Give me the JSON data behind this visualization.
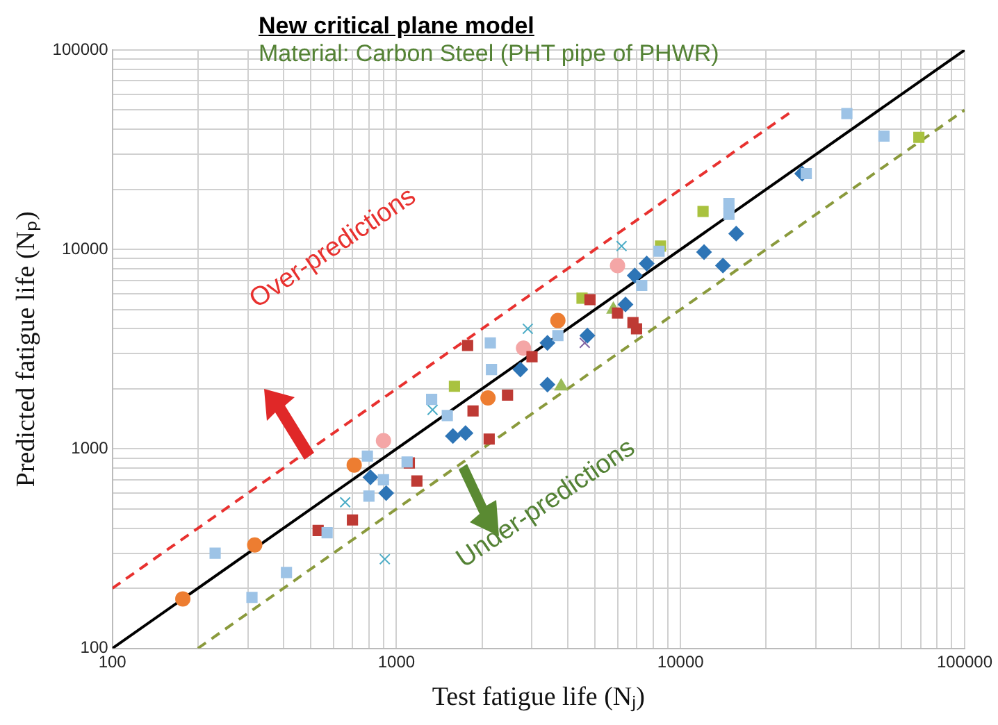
{
  "chart_data": {
    "type": "scatter",
    "title": "New critical plane model",
    "subtitle": "Material: Carbon Steel (PHT pipe of PHWR)",
    "xlabel": "Test fatigue life (Nⱼ)",
    "ylabel": "Predicted fatigue life (Nₚ)",
    "log": "xy",
    "grid": true,
    "legend": false,
    "xlim": [
      100,
      100000
    ],
    "ylim": [
      100,
      100000
    ],
    "xticks": [
      100,
      {
        "value": 200,
        "label": null
      },
      {
        "value": 300,
        "label": null
      },
      {
        "value": 400,
        "label": null
      },
      {
        "value": 500,
        "label": null
      },
      {
        "value": 600,
        "label": null
      },
      {
        "value": 700,
        "label": null
      },
      {
        "value": 800,
        "label": null
      },
      {
        "value": 900,
        "label": null
      },
      1000,
      {
        "value": 2000,
        "label": null
      },
      {
        "value": 3000,
        "label": null
      },
      {
        "value": 4000,
        "label": null
      },
      {
        "value": 5000,
        "label": null
      },
      {
        "value": 6000,
        "label": null
      },
      {
        "value": 7000,
        "label": null
      },
      {
        "value": 8000,
        "label": null
      },
      {
        "value": 9000,
        "label": null
      },
      10000,
      {
        "value": 20000,
        "label": null
      },
      {
        "value": 30000,
        "label": null
      },
      {
        "value": 40000,
        "label": null
      },
      {
        "value": 50000,
        "label": null
      },
      {
        "value": 60000,
        "label": null
      },
      {
        "value": 70000,
        "label": null
      },
      {
        "value": 80000,
        "label": null
      },
      {
        "value": 90000,
        "label": null
      },
      100000
    ],
    "yticks": [
      100,
      {
        "value": 200,
        "label": null
      },
      {
        "value": 300,
        "label": null
      },
      {
        "value": 400,
        "label": null
      },
      {
        "value": 500,
        "label": null
      },
      {
        "value": 600,
        "label": null
      },
      {
        "value": 700,
        "label": null
      },
      {
        "value": 800,
        "label": null
      },
      {
        "value": 900,
        "label": null
      },
      1000,
      {
        "value": 2000,
        "label": null
      },
      {
        "value": 3000,
        "label": null
      },
      {
        "value": 4000,
        "label": null
      },
      {
        "value": 5000,
        "label": null
      },
      {
        "value": 6000,
        "label": null
      },
      {
        "value": 7000,
        "label": null
      },
      {
        "value": 8000,
        "label": null
      },
      {
        "value": 9000,
        "label": null
      },
      10000,
      {
        "value": 20000,
        "label": null
      },
      {
        "value": 30000,
        "label": null
      },
      {
        "value": 40000,
        "label": null
      },
      {
        "value": 50000,
        "label": null
      },
      {
        "value": 60000,
        "label": null
      },
      {
        "value": 70000,
        "label": null
      },
      {
        "value": 80000,
        "label": null
      },
      {
        "value": 90000,
        "label": null
      },
      100000
    ],
    "annotations": [
      "Over-predictions",
      "Under-predictions"
    ],
    "series": [
      {
        "type": "line",
        "color": "#000000",
        "line_style": "solid",
        "marker": "none",
        "x": [
          100,
          100000
        ],
        "values": [
          100,
          100000
        ]
      },
      {
        "type": "line",
        "color": "#e8312f",
        "line_style": "dashed",
        "marker": "none",
        "x": [
          100,
          25000
        ],
        "values": [
          200,
          50000
        ]
      },
      {
        "type": "line",
        "color": "#8a9a3c",
        "line_style": "dashed",
        "marker": "none",
        "x": [
          200,
          100000
        ],
        "values": [
          100,
          50000
        ]
      },
      {
        "color": "#9dc3e6",
        "marker": "square",
        "x": [
          230,
          310,
          410,
          570,
          790,
          800,
          900,
          1090,
          1330,
          1510,
          2140,
          2160,
          3700,
          7300,
          8400,
          14800,
          14800,
          27700,
          38500,
          52000
        ],
        "values": [
          300,
          180,
          240,
          380,
          920,
          580,
          700,
          860,
          1770,
          1470,
          3400,
          2500,
          3700,
          6600,
          9800,
          17000,
          15000,
          24000,
          48000,
          37000
        ]
      },
      {
        "color": "#2e75b6",
        "marker": "diamond",
        "x": [
          810,
          920,
          1580,
          1750,
          2730,
          3400,
          3400,
          4700,
          6400,
          6900,
          7600,
          12100,
          14100,
          15700,
          26800
        ],
        "values": [
          720,
          600,
          1160,
          1200,
          2500,
          3400,
          2100,
          3700,
          5300,
          7400,
          8500,
          9700,
          8300,
          12000,
          24000
        ]
      },
      {
        "color": "#be3a34",
        "marker": "square",
        "x": [
          530,
          700,
          1110,
          1180,
          1780,
          1860,
          2120,
          2460,
          3000,
          4800,
          6000,
          6800,
          7000
        ],
        "values": [
          390,
          440,
          850,
          690,
          3300,
          1550,
          1120,
          1860,
          2900,
          5600,
          4800,
          4300,
          4000
        ]
      },
      {
        "color": "#ed7d31",
        "marker": "circle",
        "x": [
          177,
          317,
          710,
          2100,
          3700
        ],
        "values": [
          177,
          330,
          830,
          1800,
          4400
        ]
      },
      {
        "color": "#f4a6a6",
        "marker": "circle",
        "x": [
          900,
          2800,
          6000
        ],
        "values": [
          1100,
          3200,
          8300
        ]
      },
      {
        "color": "#4bacc6",
        "marker": "cross",
        "x": [
          660,
          910,
          1340,
          2900,
          6200
        ],
        "values": [
          540,
          280,
          1570,
          4000,
          10400
        ]
      },
      {
        "color": "#a9c23f",
        "marker": "square",
        "x": [
          1600,
          4500,
          8500,
          12000,
          69000
        ],
        "values": [
          2060,
          5700,
          10400,
          15500,
          36500
        ]
      },
      {
        "color": "#9bbb59",
        "marker": "triangle",
        "x": [
          3800,
          5800
        ],
        "values": [
          2060,
          5000
        ]
      },
      {
        "color": "#8064a2",
        "marker": "cross",
        "x": [
          4600
        ],
        "values": [
          3400
        ]
      }
    ]
  }
}
